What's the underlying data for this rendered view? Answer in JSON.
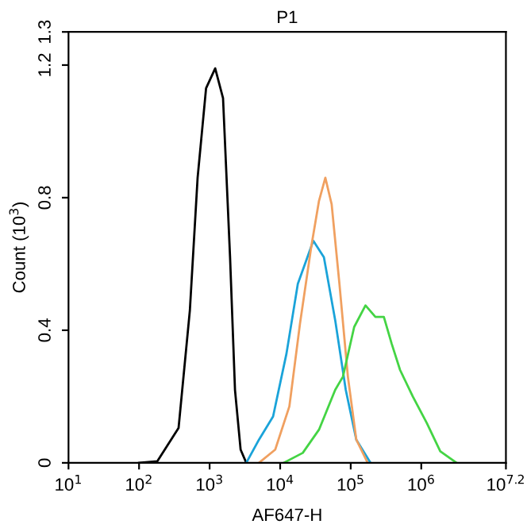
{
  "chart_data": {
    "type": "line",
    "title": "P1",
    "xlabel": "AF647-H",
    "ylabel": "Count (10$^{3}$)",
    "log": "x",
    "xlim": [
      10,
      15848932
    ],
    "xticks": [
      {
        "value": 10,
        "label": "10$^{1}$"
      },
      {
        "value": 100,
        "label": "10$^{2}$"
      },
      {
        "value": 1000,
        "label": "10$^{3}$"
      },
      {
        "value": 10000,
        "label": "10$^{4}$"
      },
      {
        "value": 100000,
        "label": "10$^{5}$"
      },
      {
        "value": 1000000,
        "label": "10$^{6}$"
      },
      {
        "value": 15848932,
        "label": "10$^{7.2}$"
      }
    ],
    "ylim": [
      0,
      1.3
    ],
    "yticks": [
      0,
      0.4,
      0.8,
      1.2,
      1.3
    ],
    "grid": false,
    "legend": false,
    "marker": "none",
    "line_style": "solid",
    "series": [
      {
        "color": "#000000",
        "x": [
          100,
          182,
          363,
          525,
          676,
          891,
          1200,
          1550,
          1950,
          2290,
          2750,
          3310
        ],
        "values": [
          0,
          0.005,
          0.105,
          0.46,
          0.86,
          1.13,
          1.19,
          1.1,
          0.62,
          0.22,
          0.04,
          0
        ]
      },
      {
        "color": "#1aa3d9",
        "x": [
          3310,
          5010,
          7940,
          12300,
          17800,
          29500,
          41700,
          60300,
          85100,
          120000,
          191000
        ],
        "values": [
          0,
          0.07,
          0.14,
          0.33,
          0.54,
          0.67,
          0.62,
          0.43,
          0.22,
          0.07,
          0
        ]
      },
      {
        "color": "#f0a060",
        "x": [
          5010,
          8510,
          13500,
          19100,
          27500,
          35500,
          43700,
          53700,
          69200,
          91200,
          120000,
          174000
        ],
        "values": [
          0,
          0.04,
          0.17,
          0.42,
          0.65,
          0.79,
          0.86,
          0.78,
          0.54,
          0.26,
          0.07,
          0
        ]
      },
      {
        "color": "#44d444",
        "x": [
          11200,
          20900,
          35500,
          60300,
          77600,
          112000,
          162000,
          224000,
          295000,
          380000,
          501000,
          759000,
          1200000,
          1860000,
          3160000
        ],
        "values": [
          0,
          0.03,
          0.1,
          0.22,
          0.26,
          0.41,
          0.475,
          0.44,
          0.44,
          0.36,
          0.28,
          0.2,
          0.12,
          0.035,
          0
        ]
      }
    ]
  }
}
